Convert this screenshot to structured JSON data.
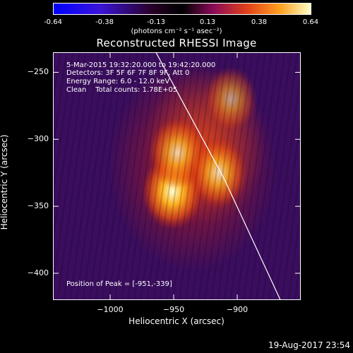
{
  "chart_data": {
    "type": "heatmap",
    "title": "Reconstructed RHESSI Image",
    "xlabel": "Heliocentric X (arcsec)",
    "ylabel": "Heliocentric Y (arcsec)",
    "xlim": [
      -1045,
      -850
    ],
    "ylim": [
      -420,
      -235
    ],
    "xticks": [
      -1000,
      -950,
      -900
    ],
    "yticks": [
      -250,
      -300,
      -350,
      -400
    ],
    "colorbar": {
      "min": -0.64,
      "max": 0.64,
      "ticks": [
        "-0.64",
        "-0.38",
        "-0.13",
        "0.13",
        "0.38",
        "0.64"
      ],
      "units": "(photons cm⁻² s⁻¹ asec⁻²)"
    },
    "sources": [
      {
        "x": -951,
        "y": -339,
        "peak": 1.0
      },
      {
        "x": -947,
        "y": -310,
        "peak": 0.78
      },
      {
        "x": -915,
        "y": -325,
        "peak": 0.8
      },
      {
        "x": -905,
        "y": -270,
        "peak": 0.55
      }
    ],
    "limb_line": [
      [
        -964,
        -235
      ],
      [
        -910,
        -330
      ],
      [
        -866,
        -420
      ]
    ]
  },
  "annotations": {
    "time_range": "5-Mar-2015 19:32:20.000 to 19:42:20.000",
    "detectors": "Detectors: 3F 5F 6F 7F 8F 9F, Att 0",
    "energy": "Energy Range: 6.0 - 12.0 keV",
    "clean": "Clean    Total counts: 1.78E+05",
    "peak": "Position of Peak = [-951,-339]"
  },
  "timestamp": "19-Aug-2017 23:54",
  "colors": {
    "background": "#000000",
    "foreground": "#ffffff"
  }
}
